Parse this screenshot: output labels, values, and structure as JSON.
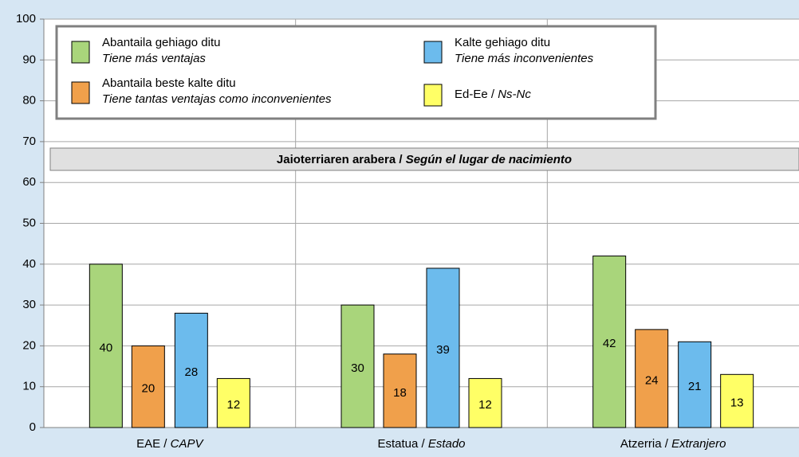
{
  "chart_data": {
    "type": "bar",
    "subtitle": "Jaioterriaren arabera / Según el lugar de nacimiento",
    "categories": [
      "EAE / CAPV",
      "Estatua / Estado",
      "Atzerria / Extranjero"
    ],
    "series": [
      {
        "name": "Abantaila gehiago ditu",
        "name_es": "Tiene más ventajas",
        "color": "#a9d57b",
        "values": [
          40,
          30,
          42
        ]
      },
      {
        "name": "Abantaila beste kalte ditu",
        "name_es": "Tiene tantas ventajas como inconvenientes",
        "color": "#f0a04b",
        "values": [
          20,
          18,
          24
        ]
      },
      {
        "name": "Kalte gehiago ditu",
        "name_es": "Tiene más inconvenientes",
        "color": "#6cbbed",
        "values": [
          28,
          39,
          21
        ]
      },
      {
        "name": "Ed-Ee / Ns-Nc",
        "color": "#ffff66",
        "values": [
          12,
          12,
          13
        ]
      }
    ],
    "ylim": [
      0,
      100
    ],
    "yticks": [
      0,
      10,
      20,
      30,
      40,
      50,
      60,
      70,
      80,
      90,
      100
    ],
    "grid": true
  }
}
